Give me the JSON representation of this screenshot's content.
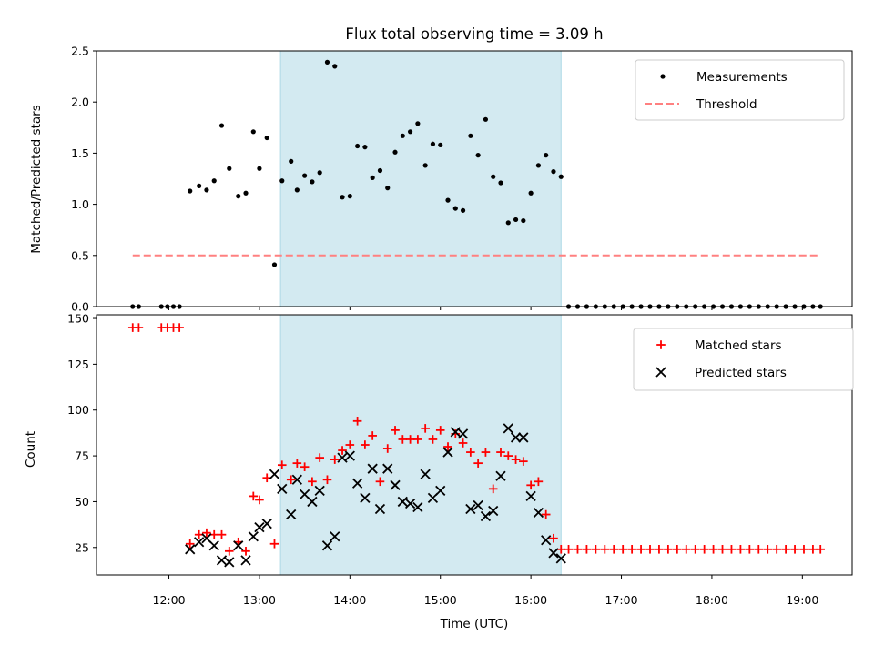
{
  "chart_data": [
    {
      "type": "scatter",
      "title": "Flux total observing time = 3.09 h",
      "xlabel": "",
      "ylabel": "Matched/Predicted stars",
      "xlim": [
        "11:12",
        "19:33"
      ],
      "ylim": [
        0,
        2.5
      ],
      "yticks": [
        0.0,
        0.5,
        1.0,
        1.5,
        2.0,
        2.5
      ],
      "ytick_labels": [
        "0.0",
        "0.5",
        "1.0",
        "1.5",
        "2.0",
        "2.5"
      ],
      "legend_position": "top-right",
      "highlight_span": {
        "start": "13:14",
        "end": "16:20",
        "color": "#d3eaf1"
      },
      "threshold": {
        "name": "Threshold",
        "value": 0.5,
        "x_start": "11:36",
        "x_end": "19:12",
        "color": "#ff8080"
      },
      "series": [
        {
          "name": "Measurements",
          "color": "#000000",
          "marker": "dot",
          "points": [
            [
              "11:36",
              0
            ],
            [
              "11:40",
              0
            ],
            [
              "11:55",
              0
            ],
            [
              "11:59",
              0
            ],
            [
              "12:03",
              0
            ],
            [
              "12:07",
              0
            ],
            [
              "12:14",
              1.13
            ],
            [
              "12:20",
              1.18
            ],
            [
              "12:25",
              1.14
            ],
            [
              "12:30",
              1.23
            ],
            [
              "12:35",
              1.77
            ],
            [
              "12:40",
              1.35
            ],
            [
              "12:46",
              1.08
            ],
            [
              "12:51",
              1.11
            ],
            [
              "12:56",
              1.71
            ],
            [
              "13:00",
              1.35
            ],
            [
              "13:05",
              1.65
            ],
            [
              "13:10",
              0.41
            ],
            [
              "13:15",
              1.23
            ],
            [
              "13:21",
              1.42
            ],
            [
              "13:25",
              1.14
            ],
            [
              "13:30",
              1.28
            ],
            [
              "13:35",
              1.22
            ],
            [
              "13:40",
              1.31
            ],
            [
              "13:45",
              2.39
            ],
            [
              "13:50",
              2.35
            ],
            [
              "13:55",
              1.07
            ],
            [
              "14:00",
              1.08
            ],
            [
              "14:05",
              1.57
            ],
            [
              "14:10",
              1.56
            ],
            [
              "14:15",
              1.26
            ],
            [
              "14:20",
              1.33
            ],
            [
              "14:25",
              1.16
            ],
            [
              "14:30",
              1.51
            ],
            [
              "14:35",
              1.67
            ],
            [
              "14:40",
              1.71
            ],
            [
              "14:45",
              1.79
            ],
            [
              "14:50",
              1.38
            ],
            [
              "14:55",
              1.59
            ],
            [
              "15:00",
              1.58
            ],
            [
              "15:05",
              1.04
            ],
            [
              "15:10",
              0.96
            ],
            [
              "15:15",
              0.94
            ],
            [
              "15:20",
              1.67
            ],
            [
              "15:25",
              1.48
            ],
            [
              "15:30",
              1.83
            ],
            [
              "15:35",
              1.27
            ],
            [
              "15:40",
              1.21
            ],
            [
              "15:45",
              0.82
            ],
            [
              "15:50",
              0.85
            ],
            [
              "15:55",
              0.84
            ],
            [
              "16:00",
              1.11
            ],
            [
              "16:05",
              1.38
            ],
            [
              "16:10",
              1.48
            ],
            [
              "16:15",
              1.32
            ],
            [
              "16:20",
              1.27
            ],
            [
              "16:25",
              0
            ],
            [
              "16:31",
              0
            ],
            [
              "16:37",
              0
            ],
            [
              "16:43",
              0
            ],
            [
              "16:49",
              0
            ],
            [
              "16:55",
              0
            ],
            [
              "17:01",
              0
            ],
            [
              "17:07",
              0
            ],
            [
              "17:13",
              0
            ],
            [
              "17:19",
              0
            ],
            [
              "17:25",
              0
            ],
            [
              "17:31",
              0
            ],
            [
              "17:37",
              0
            ],
            [
              "17:43",
              0
            ],
            [
              "17:49",
              0
            ],
            [
              "17:55",
              0
            ],
            [
              "18:01",
              0
            ],
            [
              "18:07",
              0
            ],
            [
              "18:13",
              0
            ],
            [
              "18:19",
              0
            ],
            [
              "18:25",
              0
            ],
            [
              "18:31",
              0
            ],
            [
              "18:37",
              0
            ],
            [
              "18:43",
              0
            ],
            [
              "18:49",
              0
            ],
            [
              "18:55",
              0
            ],
            [
              "19:01",
              0
            ],
            [
              "19:07",
              0
            ],
            [
              "19:12",
              0
            ]
          ]
        }
      ]
    },
    {
      "type": "scatter",
      "title": "",
      "xlabel": "Time (UTC)",
      "ylabel": "Count",
      "xlim": [
        "11:12",
        "19:33"
      ],
      "ylim": [
        10,
        152
      ],
      "xticks": [
        "12:00",
        "13:00",
        "14:00",
        "15:00",
        "16:00",
        "17:00",
        "18:00",
        "19:00"
      ],
      "yticks": [
        25,
        50,
        75,
        100,
        125,
        150
      ],
      "ytick_labels": [
        "25",
        "50",
        "75",
        "100",
        "125",
        "150"
      ],
      "legend_position": "top-right",
      "highlight_span": {
        "start": "13:14",
        "end": "16:20",
        "color": "#d3eaf1"
      },
      "series": [
        {
          "name": "Matched stars",
          "color": "#ff0000",
          "marker": "plus",
          "points": [
            [
              "11:36",
              145
            ],
            [
              "11:40",
              145
            ],
            [
              "11:55",
              145
            ],
            [
              "11:59",
              145
            ],
            [
              "12:03",
              145
            ],
            [
              "12:07",
              145
            ],
            [
              "12:14",
              27
            ],
            [
              "12:20",
              32
            ],
            [
              "12:25",
              33
            ],
            [
              "12:30",
              32
            ],
            [
              "12:35",
              32
            ],
            [
              "12:40",
              23
            ],
            [
              "12:46",
              28
            ],
            [
              "12:51",
              23
            ],
            [
              "12:56",
              53
            ],
            [
              "13:00",
              51
            ],
            [
              "13:05",
              63
            ],
            [
              "13:10",
              27
            ],
            [
              "13:15",
              70
            ],
            [
              "13:21",
              62
            ],
            [
              "13:25",
              71
            ],
            [
              "13:30",
              69
            ],
            [
              "13:35",
              61
            ],
            [
              "13:40",
              74
            ],
            [
              "13:45",
              62
            ],
            [
              "13:50",
              73
            ],
            [
              "13:55",
              78
            ],
            [
              "14:00",
              81
            ],
            [
              "14:05",
              94
            ],
            [
              "14:10",
              81
            ],
            [
              "14:15",
              86
            ],
            [
              "14:20",
              61
            ],
            [
              "14:25",
              79
            ],
            [
              "14:30",
              89
            ],
            [
              "14:35",
              84
            ],
            [
              "14:40",
              84
            ],
            [
              "14:45",
              84
            ],
            [
              "14:50",
              90
            ],
            [
              "14:55",
              84
            ],
            [
              "15:00",
              89
            ],
            [
              "15:05",
              80
            ],
            [
              "15:10",
              87
            ],
            [
              "15:15",
              82
            ],
            [
              "15:20",
              77
            ],
            [
              "15:25",
              71
            ],
            [
              "15:30",
              77
            ],
            [
              "15:35",
              57
            ],
            [
              "15:40",
              77
            ],
            [
              "15:45",
              75
            ],
            [
              "15:50",
              73
            ],
            [
              "15:55",
              72
            ],
            [
              "16:00",
              59
            ],
            [
              "16:05",
              61
            ],
            [
              "16:10",
              43
            ],
            [
              "16:15",
              30
            ],
            [
              "16:20",
              24
            ],
            [
              "16:25",
              24
            ],
            [
              "16:31",
              24
            ],
            [
              "16:37",
              24
            ],
            [
              "16:43",
              24
            ],
            [
              "16:49",
              24
            ],
            [
              "16:55",
              24
            ],
            [
              "17:01",
              24
            ],
            [
              "17:07",
              24
            ],
            [
              "17:13",
              24
            ],
            [
              "17:19",
              24
            ],
            [
              "17:25",
              24
            ],
            [
              "17:31",
              24
            ],
            [
              "17:37",
              24
            ],
            [
              "17:43",
              24
            ],
            [
              "17:49",
              24
            ],
            [
              "17:55",
              24
            ],
            [
              "18:01",
              24
            ],
            [
              "18:07",
              24
            ],
            [
              "18:13",
              24
            ],
            [
              "18:19",
              24
            ],
            [
              "18:25",
              24
            ],
            [
              "18:31",
              24
            ],
            [
              "18:37",
              24
            ],
            [
              "18:43",
              24
            ],
            [
              "18:49",
              24
            ],
            [
              "18:55",
              24
            ],
            [
              "19:01",
              24
            ],
            [
              "19:07",
              24
            ],
            [
              "19:12",
              24
            ]
          ]
        },
        {
          "name": "Predicted stars",
          "color": "#000000",
          "marker": "x",
          "points": [
            [
              "12:14",
              24
            ],
            [
              "12:20",
              28
            ],
            [
              "12:25",
              30
            ],
            [
              "12:30",
              26
            ],
            [
              "12:35",
              18
            ],
            [
              "12:40",
              17
            ],
            [
              "12:46",
              26
            ],
            [
              "12:51",
              18
            ],
            [
              "12:56",
              31
            ],
            [
              "13:00",
              36
            ],
            [
              "13:05",
              38
            ],
            [
              "13:10",
              65
            ],
            [
              "13:15",
              57
            ],
            [
              "13:21",
              43
            ],
            [
              "13:25",
              62
            ],
            [
              "13:30",
              54
            ],
            [
              "13:35",
              50
            ],
            [
              "13:40",
              56
            ],
            [
              "13:45",
              26
            ],
            [
              "13:50",
              31
            ],
            [
              "13:55",
              74
            ],
            [
              "14:00",
              75
            ],
            [
              "14:05",
              60
            ],
            [
              "14:10",
              52
            ],
            [
              "14:15",
              68
            ],
            [
              "14:20",
              46
            ],
            [
              "14:25",
              68
            ],
            [
              "14:30",
              59
            ],
            [
              "14:35",
              50
            ],
            [
              "14:40",
              49
            ],
            [
              "14:45",
              47
            ],
            [
              "14:50",
              65
            ],
            [
              "14:55",
              52
            ],
            [
              "15:00",
              56
            ],
            [
              "15:05",
              77
            ],
            [
              "15:10",
              88
            ],
            [
              "15:15",
              87
            ],
            [
              "15:20",
              46
            ],
            [
              "15:25",
              48
            ],
            [
              "15:30",
              42
            ],
            [
              "15:35",
              45
            ],
            [
              "15:40",
              64
            ],
            [
              "15:45",
              90
            ],
            [
              "15:50",
              85
            ],
            [
              "15:55",
              85
            ],
            [
              "16:00",
              53
            ],
            [
              "16:05",
              44
            ],
            [
              "16:10",
              29
            ],
            [
              "16:15",
              22
            ],
            [
              "16:20",
              19
            ]
          ]
        }
      ]
    }
  ]
}
